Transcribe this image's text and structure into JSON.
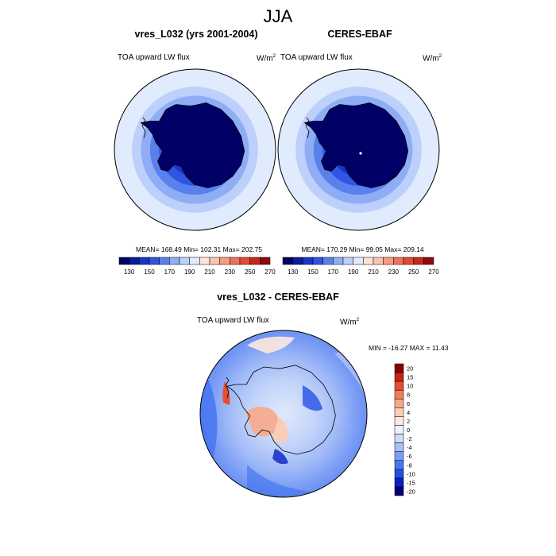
{
  "page": {
    "title": "JJA"
  },
  "panels": [
    {
      "title": "vres_L032 (yrs 2001-2004)",
      "left_label": "TOA upward LW flux",
      "unit_base": "W/m",
      "unit_exp": "2",
      "stats": "MEAN= 168.49  Min= 102.31  Max= 202.75"
    },
    {
      "title": "CERES-EBAF",
      "left_label": "TOA upward LW flux",
      "unit_base": "W/m",
      "unit_exp": "2",
      "stats": "MEAN= 170.29  Min=  99.05  Max= 209.14"
    },
    {
      "title": "vres_L032 - CERES-EBAF",
      "left_label": "TOA upward LW flux",
      "unit_base": "W/m",
      "unit_exp": "2",
      "stats": "MIN = -16.27 MAX =  11.43"
    }
  ],
  "colors": {
    "seq": [
      "#000066",
      "#0a1a9a",
      "#1b34c8",
      "#2f55e2",
      "#5a80ee",
      "#8fadf5",
      "#bcd0fb",
      "#e0ebfd",
      "#fde4d6",
      "#fac4ad",
      "#f69c80",
      "#ef7256",
      "#e24a33",
      "#c8261c",
      "#8e0a0a"
    ],
    "div": [
      "#00007a",
      "#0a21c0",
      "#2450e6",
      "#4777f0",
      "#7a9df5",
      "#a8c0f8",
      "#cfdcfb",
      "#eef3fe",
      "#fde9df",
      "#fbcdb6",
      "#f7a987",
      "#f27b58",
      "#e84d2e",
      "#c82212",
      "#8a0000"
    ]
  },
  "chart_data": [
    {
      "type": "heatmap",
      "projection": "south-polar-stereographic",
      "title": "vres_L032 (yrs 2001-2004)",
      "variable": "TOA upward LW flux",
      "units": "W/m2",
      "mean": 168.49,
      "min": 102.31,
      "max": 202.75,
      "contour_levels": [
        130,
        140,
        150,
        160,
        170,
        180,
        190,
        200,
        210,
        220,
        230,
        240,
        250,
        260,
        270
      ],
      "colorbar_ticks": [
        "130",
        "150",
        "170",
        "190",
        "210",
        "230",
        "250",
        "270"
      ],
      "rings": [
        {
          "value": 200
        },
        {
          "value": 192
        },
        {
          "value": 184
        },
        {
          "value": 176
        },
        {
          "value": 166
        },
        {
          "value": 156
        },
        {
          "value": 145
        },
        {
          "value": 130
        },
        {
          "value": 115
        }
      ]
    },
    {
      "type": "heatmap",
      "projection": "south-polar-stereographic",
      "title": "CERES-EBAF",
      "variable": "TOA upward LW flux",
      "units": "W/m2",
      "mean": 170.29,
      "min": 99.05,
      "max": 209.14,
      "contour_levels": [
        130,
        140,
        150,
        160,
        170,
        180,
        190,
        200,
        210,
        220,
        230,
        240,
        250,
        260,
        270
      ],
      "colorbar_ticks": [
        "130",
        "150",
        "170",
        "190",
        "210",
        "230",
        "250",
        "270"
      ],
      "rings": [
        {
          "value": 200
        },
        {
          "value": 192
        },
        {
          "value": 184
        },
        {
          "value": 176
        },
        {
          "value": 166
        },
        {
          "value": 156
        },
        {
          "value": 145
        },
        {
          "value": 130
        },
        {
          "value": 115
        }
      ]
    },
    {
      "type": "heatmap",
      "projection": "south-polar-stereographic",
      "title": "vres_L032 - CERES-EBAF",
      "variable": "TOA upward LW flux",
      "units": "W/m2",
      "min": -16.27,
      "max": 11.43,
      "contour_levels": [
        -20,
        -15,
        -10,
        -8,
        -6,
        -4,
        -2,
        0,
        2,
        4,
        6,
        8,
        10,
        15,
        20
      ],
      "colorbar_ticks": [
        "20",
        "15",
        "10",
        "8",
        "6",
        "4",
        "2",
        "0",
        "-2",
        "-4",
        "-6",
        "-8",
        "-10",
        "-15",
        "-20"
      ]
    }
  ]
}
